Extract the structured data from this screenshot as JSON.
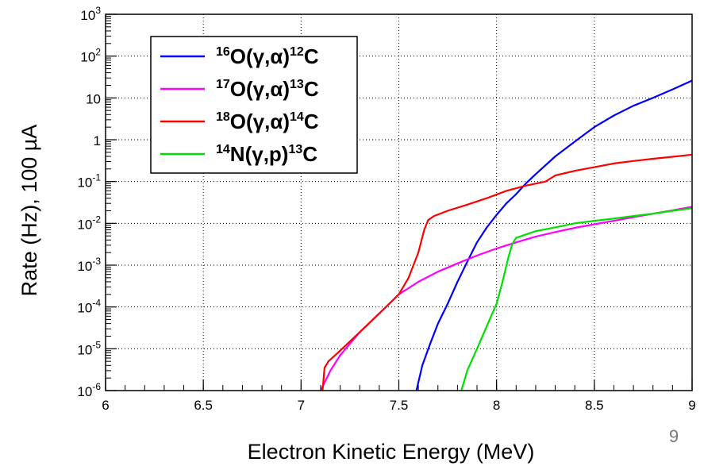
{
  "chart_data": {
    "type": "line",
    "title": "",
    "xlabel": "Electron Kinetic Energy (MeV)",
    "ylabel": "Rate (Hz), 100 µA",
    "xlim": [
      6,
      9
    ],
    "ylim": [
      1e-06,
      1000
    ],
    "yscale": "log",
    "grid": true,
    "legend_position": "top-left",
    "x_ticks": [
      {
        "value": 6,
        "label": "6"
      },
      {
        "value": 6.5,
        "label": "6.5"
      },
      {
        "value": 7,
        "label": "7"
      },
      {
        "value": 7.5,
        "label": "7.5"
      },
      {
        "value": 8,
        "label": "8"
      },
      {
        "value": 8.5,
        "label": "8.5"
      },
      {
        "value": 9,
        "label": "9"
      }
    ],
    "y_ticks": [
      {
        "value": 1e-06,
        "base": "10",
        "exp": "-6",
        "plain": ""
      },
      {
        "value": 1e-05,
        "base": "10",
        "exp": "-5",
        "plain": ""
      },
      {
        "value": 0.0001,
        "base": "10",
        "exp": "-4",
        "plain": ""
      },
      {
        "value": 0.001,
        "base": "10",
        "exp": "-3",
        "plain": ""
      },
      {
        "value": 0.01,
        "base": "10",
        "exp": "-2",
        "plain": ""
      },
      {
        "value": 0.1,
        "base": "10",
        "exp": "-1",
        "plain": ""
      },
      {
        "value": 1,
        "base": "",
        "exp": "",
        "plain": "1"
      },
      {
        "value": 10,
        "base": "",
        "exp": "",
        "plain": "10"
      },
      {
        "value": 100,
        "base": "10",
        "exp": "2",
        "plain": ""
      },
      {
        "value": 1000,
        "base": "10",
        "exp": "3",
        "plain": ""
      }
    ],
    "series": [
      {
        "name": "16O(γ,α)12C",
        "legend": {
          "pre": "16",
          "main": "O(γ,α)",
          "post": "12",
          "end": "C"
        },
        "color": "#0000ff",
        "x": [
          7.59,
          7.62,
          7.66,
          7.7,
          7.75,
          7.8,
          7.85,
          7.9,
          7.95,
          8.0,
          8.05,
          8.1,
          8.15,
          8.2,
          8.3,
          8.4,
          8.5,
          8.6,
          8.7,
          8.8,
          8.9,
          9.0
        ],
        "y": [
          1e-06,
          4e-06,
          1.3e-05,
          4e-05,
          0.00012,
          0.0004,
          0.0012,
          0.0035,
          0.008,
          0.016,
          0.03,
          0.05,
          0.09,
          0.15,
          0.4,
          0.9,
          2.0,
          3.8,
          6.5,
          10,
          16,
          26
        ]
      },
      {
        "name": "17O(γ,α)13C",
        "legend": {
          "pre": "17",
          "main": "O(γ,α)",
          "post": "13",
          "end": "C"
        },
        "color": "#ff00ff",
        "x": [
          7.1,
          7.15,
          7.2,
          7.3,
          7.4,
          7.5,
          7.6,
          7.7,
          7.8,
          7.9,
          8.0,
          8.1,
          8.2,
          8.3,
          8.4,
          8.5,
          8.6,
          8.7,
          8.8,
          8.9,
          9.0
        ],
        "y": [
          1e-06,
          3e-06,
          7e-06,
          2.5e-05,
          7e-05,
          0.0002,
          0.0004,
          0.0007,
          0.0011,
          0.0017,
          0.0025,
          0.0035,
          0.0048,
          0.0062,
          0.0078,
          0.0095,
          0.0115,
          0.014,
          0.017,
          0.0205,
          0.025
        ]
      },
      {
        "name": "18O(γ,α)14C",
        "legend": {
          "pre": "18",
          "main": "O(γ,α)",
          "post": "14",
          "end": "C"
        },
        "color": "#ff0000",
        "x": [
          7.11,
          7.12,
          7.14,
          7.2,
          7.3,
          7.4,
          7.5,
          7.55,
          7.6,
          7.63,
          7.65,
          7.68,
          7.75,
          7.85,
          7.95,
          8.05,
          8.15,
          8.25,
          8.3,
          8.4,
          8.5,
          8.6,
          8.7,
          8.8,
          8.9,
          9.0
        ],
        "y": [
          1e-06,
          3.5e-06,
          5e-06,
          9e-06,
          2.5e-05,
          7e-05,
          0.0002,
          0.0005,
          0.002,
          0.007,
          0.012,
          0.015,
          0.02,
          0.028,
          0.04,
          0.06,
          0.08,
          0.1,
          0.14,
          0.18,
          0.22,
          0.27,
          0.31,
          0.35,
          0.39,
          0.44
        ]
      },
      {
        "name": "14N(γ,p)13C",
        "legend": {
          "pre": "14",
          "main": "N(γ,p)",
          "post": "13",
          "end": "C"
        },
        "color": "#00e000",
        "x": [
          7.82,
          7.85,
          7.9,
          7.95,
          8.0,
          8.03,
          8.06,
          8.08,
          8.1,
          8.2,
          8.3,
          8.4,
          8.5,
          8.6,
          8.7,
          8.8,
          8.9,
          9.0
        ],
        "y": [
          1e-06,
          3e-06,
          1e-05,
          3.5e-05,
          0.00012,
          0.0004,
          0.0015,
          0.0032,
          0.0045,
          0.0065,
          0.008,
          0.01,
          0.0115,
          0.013,
          0.015,
          0.017,
          0.02,
          0.023
        ]
      }
    ]
  },
  "page_number": "9"
}
